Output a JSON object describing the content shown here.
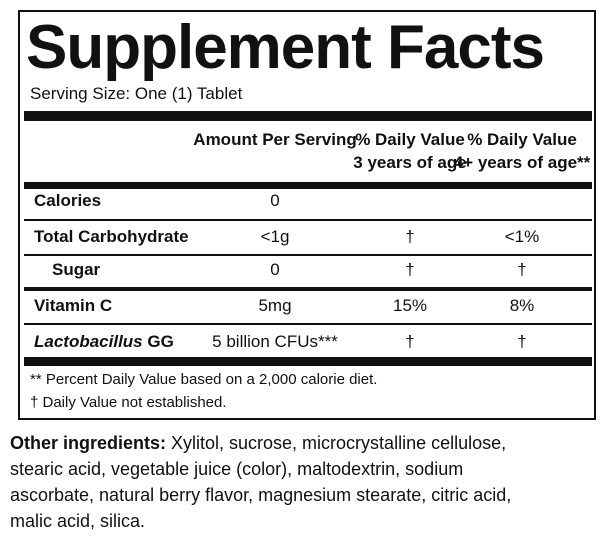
{
  "header": {
    "title": "Supplement Facts",
    "serving_size": "Serving Size: One (1) Tablet"
  },
  "table": {
    "columns": [
      {
        "lines": [
          "Amount Per Serving"
        ]
      },
      {
        "lines": [
          "% Daily Value",
          "3 years of age"
        ]
      },
      {
        "lines": [
          "% Daily Value",
          "4+ years of age**"
        ]
      }
    ],
    "rows": [
      {
        "name": "Calories",
        "amount": "0"
      },
      {
        "name": "Total Carbohydrate",
        "amount": "<1g",
        "dv_3": "†",
        "dv_4": "<1%"
      },
      {
        "name": "Sugar",
        "amount": "0",
        "dv_3": "†",
        "dv_4": "†"
      },
      {
        "name": "Vitamin C",
        "amount": "5mg",
        "dv_3": "15%",
        "dv_4": "8%"
      },
      {
        "name_italic": "Lactobacillus",
        "name": "GG",
        "amount": "5 billion CFUs***",
        "dv_3": "†",
        "dv_4": "†"
      }
    ]
  },
  "footnotes": [
    "** Percent Daily Value based on a 2,000 calorie diet.",
    "† Daily Value not established."
  ],
  "other_ingredients": {
    "label": "Other ingredients:",
    "lines": [
      " Xylitol, sucrose, microcrystalline cellulose,",
      "stearic acid, vegetable juice (color), maltodextrin, sodium",
      "ascorbate, natural berry flavor, magnesium stearate, citric acid,",
      "malic acid, silica."
    ]
  }
}
